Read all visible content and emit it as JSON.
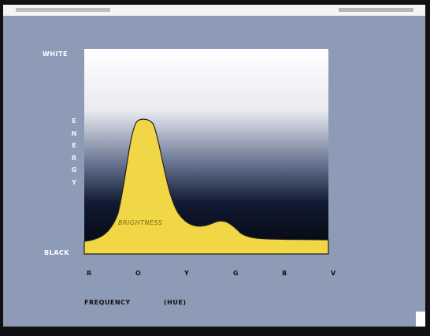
{
  "labels": {
    "top": "WHITE",
    "bottom": "BLACK",
    "y_axis": "ENERGY",
    "curve": "BRIGHTNESS",
    "x_axis": "FREQUENCY",
    "x_axis_note": "(HUE)"
  },
  "hues": [
    "R",
    "O",
    "Y",
    "G",
    "B",
    "V"
  ]
}
